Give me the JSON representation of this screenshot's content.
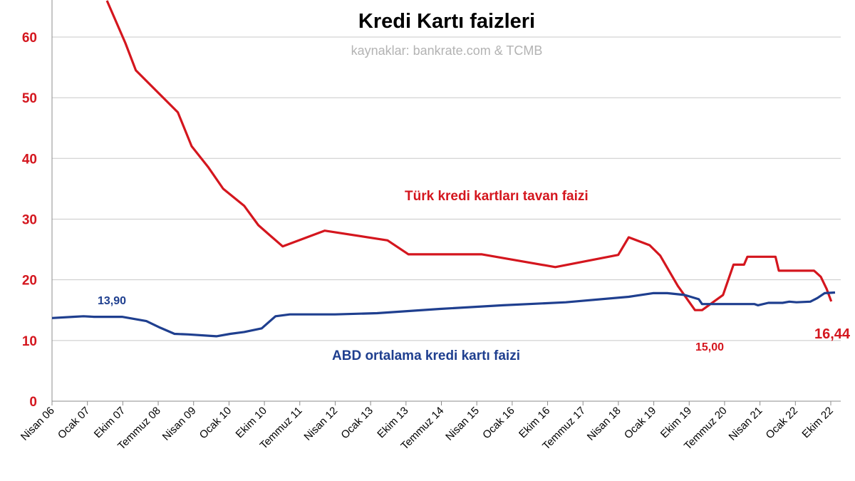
{
  "chart_data": {
    "type": "line",
    "title": "Kredi Kartı faizleri",
    "subtitle": "kaynaklar: bankrate.com & TCMB",
    "xlabel": "",
    "ylabel": "",
    "ylim": [
      0,
      65
    ],
    "yticks": [
      "0",
      "10",
      "20",
      "30",
      "40",
      "50",
      "60"
    ],
    "grid": true,
    "x_labels": [
      "Nisan 06",
      "Ocak 07",
      "Ekim 07",
      "Temmuz 08",
      "Nisan 09",
      "Ocak 10",
      "Ekim 10",
      "Temmuz 11",
      "Nisan 12",
      "Ocak 13",
      "Ekim 13",
      "Temmuz 14",
      "Nisan 15",
      "Ocak 16",
      "Ekim 16",
      "Temmuz 17",
      "Nisan 18",
      "Ocak 19",
      "Ekim 19",
      "Temmuz 20",
      "Nisan 21",
      "Ocak 22",
      "Ekim 22"
    ],
    "series": [
      {
        "name": "Türk kredi kartları tavan faizi",
        "color": "#d4161e",
        "points": [
          [
            2007.56,
            66.0
          ],
          [
            2008.0,
            59.0
          ],
          [
            2008.25,
            54.5
          ],
          [
            2009.25,
            47.6
          ],
          [
            2009.58,
            42.0
          ],
          [
            2009.97,
            38.6
          ],
          [
            2010.33,
            35.0
          ],
          [
            2010.83,
            32.2
          ],
          [
            2011.17,
            29.0
          ],
          [
            2011.5,
            27.0
          ],
          [
            2011.75,
            25.5
          ],
          [
            2012.75,
            28.1
          ],
          [
            2014.25,
            26.5
          ],
          [
            2014.75,
            24.2
          ],
          [
            2016.5,
            24.2
          ],
          [
            2018.25,
            22.1
          ],
          [
            2019.75,
            24.1
          ],
          [
            2020.0,
            27.0
          ],
          [
            2020.5,
            25.7
          ],
          [
            2020.75,
            24.0
          ],
          [
            2021.17,
            19.0
          ],
          [
            2021.58,
            15.0
          ],
          [
            2021.75,
            15.0
          ],
          [
            2022.25,
            17.5
          ],
          [
            2022.5,
            22.5
          ],
          [
            2022.75,
            22.5
          ],
          [
            2022.83,
            23.8
          ],
          [
            2023.5,
            23.8
          ],
          [
            2023.58,
            21.5
          ],
          [
            2024.42,
            21.5
          ],
          [
            2024.58,
            20.5
          ],
          [
            2024.72,
            18.5
          ],
          [
            2024.83,
            16.44
          ]
        ]
      },
      {
        "name": "ABD ortalama kredi kartı faizi",
        "color": "#1f3f8f",
        "points": [
          [
            2006.25,
            13.7
          ],
          [
            2006.75,
            13.9
          ],
          [
            2007.0,
            14.0
          ],
          [
            2007.25,
            13.9
          ],
          [
            2007.92,
            13.9
          ],
          [
            2008.5,
            13.2
          ],
          [
            2008.83,
            12.1
          ],
          [
            2009.17,
            11.1
          ],
          [
            2009.5,
            11.0
          ],
          [
            2010.17,
            10.7
          ],
          [
            2010.5,
            11.1
          ],
          [
            2010.83,
            11.4
          ],
          [
            2011.25,
            12.0
          ],
          [
            2011.58,
            14.0
          ],
          [
            2011.92,
            14.3
          ],
          [
            2013.0,
            14.3
          ],
          [
            2014.0,
            14.5
          ],
          [
            2015.5,
            15.2
          ],
          [
            2017.0,
            15.8
          ],
          [
            2018.5,
            16.3
          ],
          [
            2020.0,
            17.2
          ],
          [
            2020.58,
            17.8
          ],
          [
            2020.92,
            17.8
          ],
          [
            2021.33,
            17.5
          ],
          [
            2021.67,
            16.8
          ],
          [
            2021.75,
            16.0
          ],
          [
            2022.25,
            16.0
          ],
          [
            2022.5,
            16.0
          ],
          [
            2023.0,
            16.0
          ],
          [
            2023.08,
            15.8
          ],
          [
            2023.33,
            16.2
          ],
          [
            2023.67,
            16.2
          ],
          [
            2023.83,
            16.4
          ],
          [
            2024.0,
            16.3
          ],
          [
            2024.33,
            16.4
          ],
          [
            2024.5,
            17.0
          ],
          [
            2024.67,
            17.8
          ],
          [
            2024.92,
            17.9
          ]
        ]
      }
    ],
    "annotations": [
      {
        "text": "13,90",
        "series": 1,
        "x": 2006.75,
        "y": 13.9
      },
      {
        "text": "15,00",
        "series": 0,
        "x": 2021.58,
        "y": 15.0
      },
      {
        "text": "16,44",
        "series": 0,
        "x": 2024.83,
        "y": 16.44
      }
    ]
  }
}
